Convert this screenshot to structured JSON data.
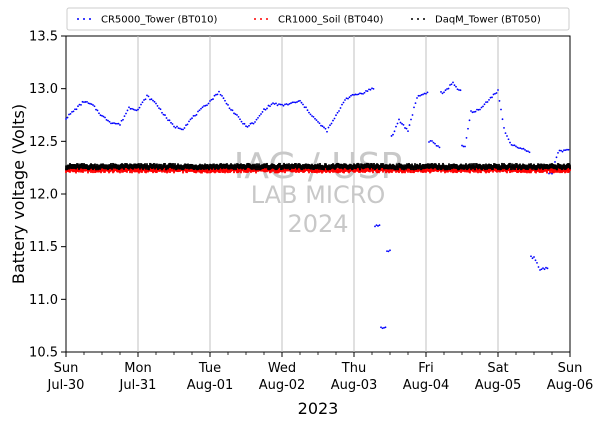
{
  "chart_data": {
    "type": "scatter",
    "ylabel": "Battery voltage (Volts)",
    "xlabel": "2023",
    "ylim": [
      10.5,
      13.5
    ],
    "xlim": [
      "2023-07-30",
      "2023-08-06"
    ],
    "y_ticks": [
      "10.5",
      "11.0",
      "11.5",
      "12.0",
      "12.5",
      "13.0",
      "13.5"
    ],
    "x_ticks": [
      {
        "day": "Sun",
        "date": "Jul-30"
      },
      {
        "day": "Mon",
        "date": "Jul-31"
      },
      {
        "day": "Tue",
        "date": "Aug-01"
      },
      {
        "day": "Wed",
        "date": "Aug-02"
      },
      {
        "day": "Thu",
        "date": "Aug-03"
      },
      {
        "day": "Fri",
        "date": "Aug-04"
      },
      {
        "day": "Sat",
        "date": "Aug-05"
      },
      {
        "day": "Sun",
        "date": "Aug-06"
      }
    ],
    "grid": "vertical lines at day ticks",
    "legend_position": "top",
    "watermark": [
      "IAG / USP",
      "LAB MICRO",
      "2024"
    ],
    "series": [
      {
        "name": "CR5000_Tower (BT010)",
        "color": "#0000ff",
        "points": [
          [
            "2023-07-30 00:00",
            12.72
          ],
          [
            "2023-07-30 03:00",
            12.8
          ],
          [
            "2023-07-30 06:00",
            12.88
          ],
          [
            "2023-07-30 09:00",
            12.84
          ],
          [
            "2023-07-30 12:00",
            12.74
          ],
          [
            "2023-07-30 15:00",
            12.68
          ],
          [
            "2023-07-30 18:00",
            12.66
          ],
          [
            "2023-07-30 21:00",
            12.82
          ],
          [
            "2023-07-31 00:00",
            12.8
          ],
          [
            "2023-07-31 03:00",
            12.93
          ],
          [
            "2023-07-31 06:00",
            12.86
          ],
          [
            "2023-07-31 09:00",
            12.74
          ],
          [
            "2023-07-31 12:00",
            12.64
          ],
          [
            "2023-07-31 15:00",
            12.62
          ],
          [
            "2023-07-31 18:00",
            12.72
          ],
          [
            "2023-07-31 21:00",
            12.8
          ],
          [
            "2023-08-01 00:00",
            12.88
          ],
          [
            "2023-08-01 03:00",
            12.97
          ],
          [
            "2023-08-01 06:00",
            12.84
          ],
          [
            "2023-08-01 09:00",
            12.74
          ],
          [
            "2023-08-01 12:00",
            12.64
          ],
          [
            "2023-08-01 15:00",
            12.68
          ],
          [
            "2023-08-01 18:00",
            12.8
          ],
          [
            "2023-08-01 21:00",
            12.86
          ],
          [
            "2023-08-02 00:00",
            12.84
          ],
          [
            "2023-08-02 03:00",
            12.86
          ],
          [
            "2023-08-02 06:00",
            12.88
          ],
          [
            "2023-08-02 09:00",
            12.78
          ],
          [
            "2023-08-02 12:00",
            12.68
          ],
          [
            "2023-08-02 15:00",
            12.6
          ],
          [
            "2023-08-02 18:00",
            12.74
          ],
          [
            "2023-08-02 21:00",
            12.9
          ],
          [
            "2023-08-03 00:00",
            12.94
          ],
          [
            "2023-08-03 03:00",
            12.96
          ],
          [
            "2023-08-03 06:00",
            13.0
          ],
          [
            "2023-08-03 08:00",
            11.7
          ],
          [
            "2023-08-03 10:00",
            10.73
          ],
          [
            "2023-08-03 12:00",
            11.46
          ],
          [
            "2023-08-03 13:00",
            12.56
          ],
          [
            "2023-08-03 15:00",
            12.7
          ],
          [
            "2023-08-03 18:00",
            12.6
          ],
          [
            "2023-08-03 21:00",
            12.92
          ],
          [
            "2023-08-04 00:00",
            12.96
          ],
          [
            "2023-08-04 02:00",
            12.5
          ],
          [
            "2023-08-04 04:00",
            12.45
          ],
          [
            "2023-08-04 06:00",
            12.96
          ],
          [
            "2023-08-04 09:00",
            13.06
          ],
          [
            "2023-08-04 11:00",
            12.98
          ],
          [
            "2023-08-04 13:00",
            12.45
          ],
          [
            "2023-08-04 15:00",
            12.78
          ],
          [
            "2023-08-04 18:00",
            12.8
          ],
          [
            "2023-08-04 21:00",
            12.9
          ],
          [
            "2023-08-05 00:00",
            12.98
          ],
          [
            "2023-08-05 02:00",
            12.62
          ],
          [
            "2023-08-05 04:00",
            12.48
          ],
          [
            "2023-08-05 07:00",
            12.44
          ],
          [
            "2023-08-05 10:00",
            12.4
          ],
          [
            "2023-08-05 12:00",
            11.4
          ],
          [
            "2023-08-05 14:00",
            11.28
          ],
          [
            "2023-08-05 16:00",
            11.3
          ],
          [
            "2023-08-05 18:00",
            12.2
          ],
          [
            "2023-08-05 20:00",
            12.4
          ],
          [
            "2023-08-05 23:30",
            12.42
          ]
        ]
      },
      {
        "name": "CR1000_Soil (BT040)",
        "color": "#ff0000",
        "points": [
          [
            "2023-07-30 00:00",
            12.23
          ],
          [
            "2023-08-06 00:00",
            12.23
          ]
        ]
      },
      {
        "name": "DaqM_Tower (BT050)",
        "color": "#000000",
        "points": [
          [
            "2023-07-30 00:00",
            12.26
          ],
          [
            "2023-08-06 00:00",
            12.26
          ]
        ]
      }
    ]
  }
}
